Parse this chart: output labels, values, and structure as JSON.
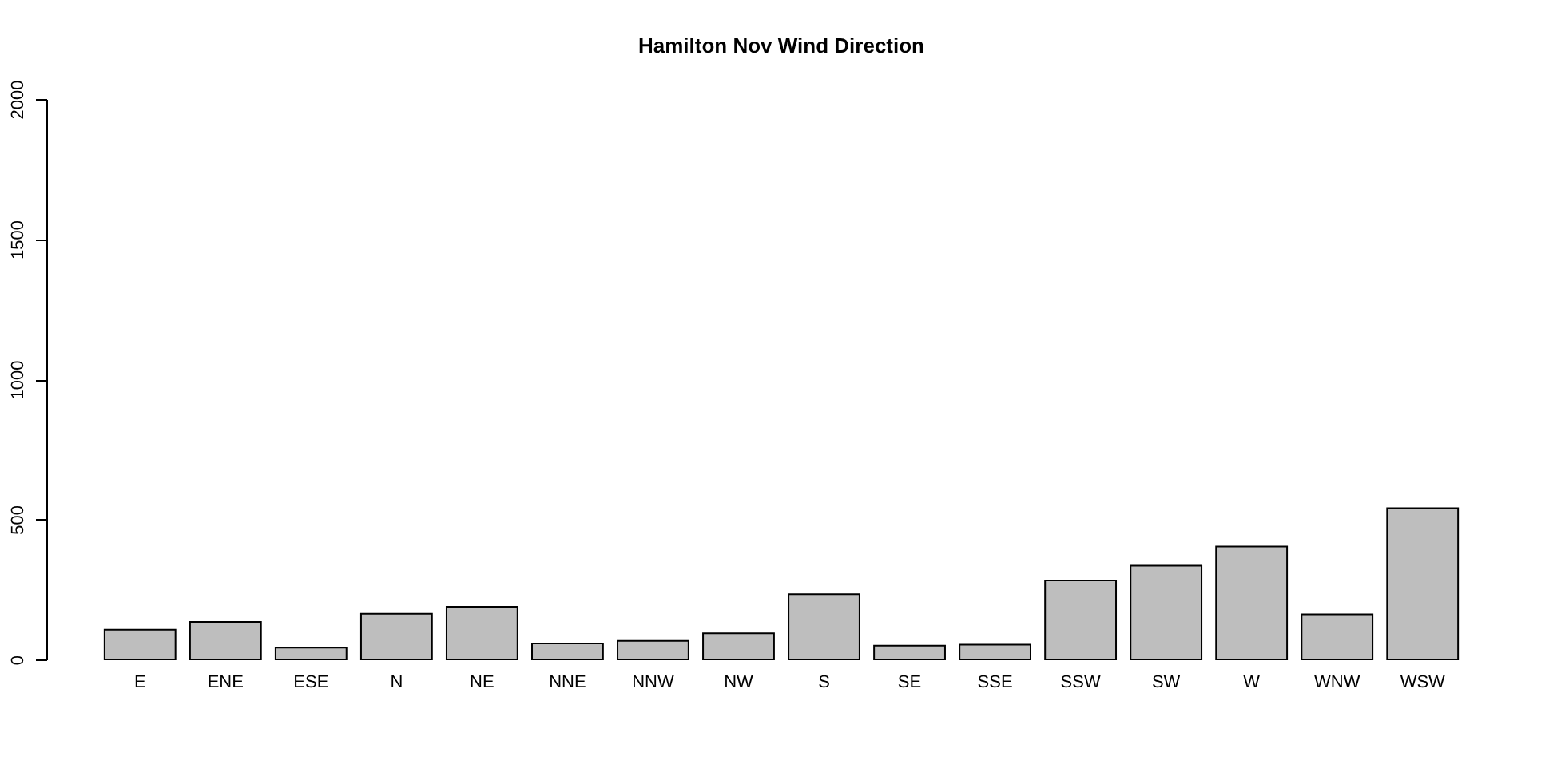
{
  "chart_data": {
    "type": "bar",
    "title": "Hamilton Nov Wind Direction",
    "categories": [
      "E",
      "ENE",
      "ESE",
      "N",
      "NE",
      "NNE",
      "NNW",
      "NW",
      "S",
      "SE",
      "SSE",
      "SSW",
      "SW",
      "W",
      "WNW",
      "WSW"
    ],
    "values": [
      106,
      134,
      42,
      163,
      188,
      57,
      66,
      93,
      233,
      49,
      53,
      282,
      335,
      403,
      161,
      540
    ],
    "color": "#bebebe",
    "ylim": [
      0,
      2000
    ],
    "yticks": [
      0,
      500,
      1000,
      1500,
      2000
    ],
    "grid": false
  }
}
